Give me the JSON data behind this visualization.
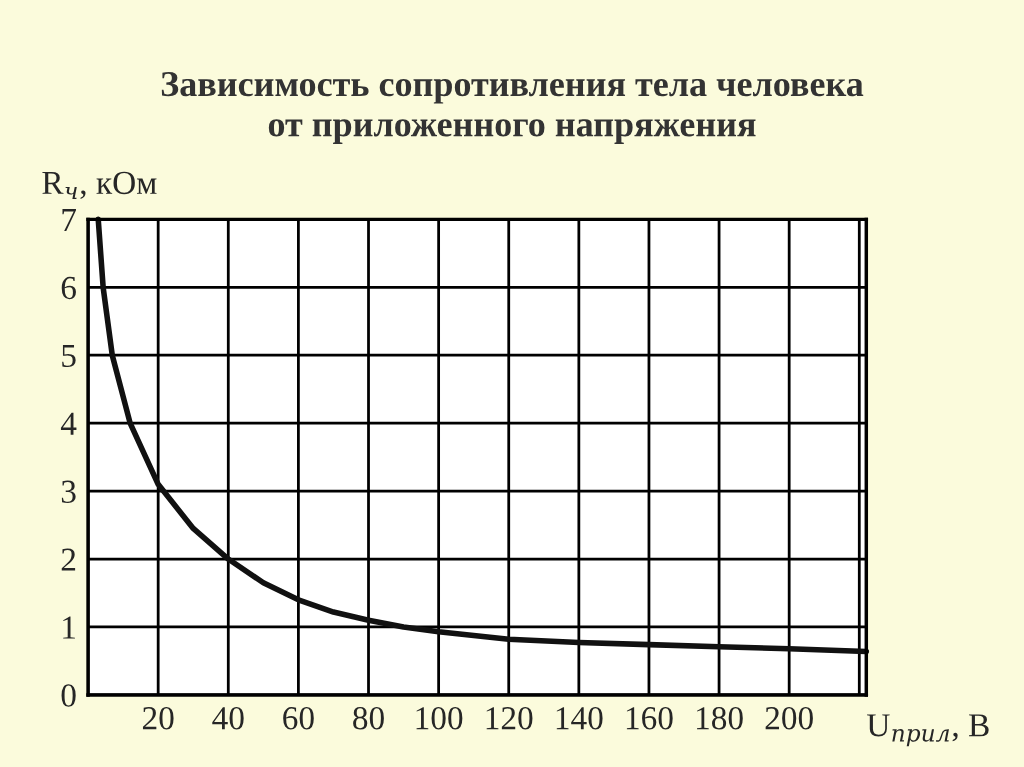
{
  "chart_data": {
    "type": "line",
    "title": "Зависимость сопротивления тела человека\nот приложенного напряжения",
    "xlabel": "U$_{прил}$, В",
    "ylabel": "R$_{ч}$, кОм",
    "x": [
      2.9,
      4.3,
      6.9,
      12,
      20,
      30,
      40,
      50,
      60,
      70,
      80,
      90,
      100,
      120,
      140,
      160,
      180,
      200,
      222
    ],
    "series": [
      {
        "color": "#111111",
        "values": [
          7,
          6,
          5,
          4,
          3.1,
          2.45,
          2.0,
          1.65,
          1.4,
          1.22,
          1.1,
          1.0,
          0.93,
          0.82,
          0.77,
          0.74,
          0.71,
          0.68,
          0.64
        ]
      }
    ],
    "xlim": [
      0,
      222
    ],
    "ylim": [
      0,
      7
    ],
    "xticks": [
      {
        "value": 0,
        "label": null
      },
      20,
      40,
      60,
      80,
      100,
      120,
      140,
      160,
      180,
      200,
      {
        "value": 220,
        "label": null
      }
    ],
    "yticks": [
      0,
      1,
      2,
      3,
      4,
      5,
      6,
      7
    ],
    "grid": true,
    "marker": "none",
    "line_style": "solid"
  }
}
